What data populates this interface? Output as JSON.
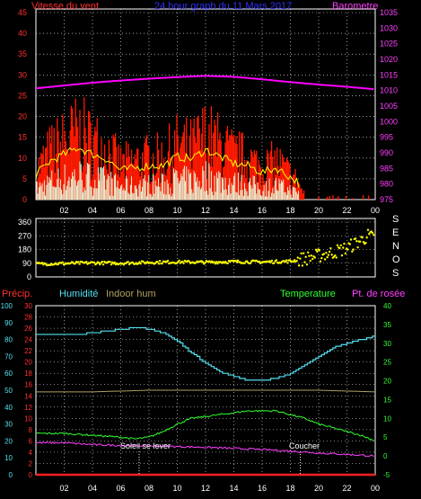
{
  "header": {
    "wind_label": "Vitesse du vent",
    "title": "24 hour graph du 11 Mars 2017",
    "baro_label": "Barometre"
  },
  "colors": {
    "wind": "#ff1a00",
    "gust_light": "#e8ffe0",
    "yellow": "#ffff00",
    "baro": "#ff00ff",
    "humidity": "#55e0f0",
    "indoor": "#b0a060",
    "temp": "#30ff30",
    "dew": "#ff40ff",
    "rain": "#ff2020",
    "axis_left": "#ff3030",
    "axis_right_magenta": "#ff40ff",
    "axis_right_green": "#30ff30",
    "axis_left_cyan": "#55e0f0",
    "grid": "#ffffff"
  },
  "x_ticks": [
    "02",
    "04",
    "06",
    "08",
    "10",
    "12",
    "14",
    "16",
    "18",
    "20",
    "22",
    "00"
  ],
  "panel_wind": {
    "y_left_ticks": [
      "0",
      "5",
      "10",
      "15",
      "20",
      "25",
      "30",
      "35",
      "40",
      "45"
    ],
    "y_right_ticks": [
      "975",
      "980",
      "985",
      "990",
      "995",
      "1000",
      "1005",
      "1010",
      "1015",
      "1020",
      "1025",
      "1030",
      "1035"
    ]
  },
  "panel_dir": {
    "y_ticks": [
      "0",
      "90",
      "180",
      "270",
      "360"
    ],
    "cardinals": [
      "S",
      "E",
      "N",
      "O",
      "S"
    ]
  },
  "panel_temp": {
    "labels": {
      "precip": "Précip.",
      "humidity": "Humidité",
      "indoor": "Indoor hum",
      "temperature": "Temperature",
      "dew": "Pt. de rosée"
    },
    "y_precip_ticks": [
      "0",
      "10",
      "20",
      "30",
      "40",
      "50",
      "60",
      "70",
      "80",
      "90",
      "100"
    ],
    "y_hum_ticks": [
      "0",
      "2",
      "4",
      "6",
      "8",
      "10",
      "12",
      "14",
      "16",
      "18",
      "20",
      "22",
      "24",
      "26",
      "28",
      "30"
    ],
    "y_temp_ticks": [
      "-5",
      "0",
      "5",
      "10",
      "15",
      "20",
      "25",
      "30",
      "35",
      "40"
    ],
    "sunrise": "Soleil se lever",
    "sunset": "Coucher"
  },
  "chart_data": [
    {
      "type": "line",
      "title": "24 hour graph du 11 Mars 2017",
      "x_unit": "hour",
      "x_range": [
        0,
        24
      ],
      "series": [
        {
          "name": "Barometre",
          "axis": "right",
          "x": [
            0,
            2,
            4,
            6,
            8,
            10,
            12,
            14,
            16,
            18,
            20,
            22,
            24
          ],
          "values": [
            1010.7,
            1011.6,
            1012.5,
            1013.2,
            1013.8,
            1014.3,
            1014.7,
            1014.4,
            1013.6,
            1012.7,
            1011.9,
            1011.2,
            1010.4
          ]
        },
        {
          "name": "Vitesse du vent",
          "axis": "left",
          "style": "bar",
          "x": [
            0,
            1,
            2,
            3,
            4,
            5,
            6,
            7,
            8,
            9,
            10,
            11,
            12,
            13,
            14,
            15,
            16,
            17,
            18,
            18.5,
            19,
            20,
            21,
            22,
            23
          ],
          "values": [
            9,
            15,
            18,
            21,
            18,
            16,
            11,
            12,
            13,
            13,
            17,
            16,
            20,
            17,
            14,
            13,
            10,
            12,
            8,
            6,
            2,
            1,
            1,
            1,
            1
          ]
        }
      ],
      "ylim_left": [
        0,
        45
      ],
      "ylim_right": [
        975,
        1035
      ]
    },
    {
      "type": "scatter",
      "x_unit": "hour",
      "x_range": [
        0,
        24
      ],
      "series": [
        {
          "name": "Direction",
          "x": [
            0,
            2,
            4,
            6,
            8,
            10,
            12,
            14,
            16,
            18,
            19,
            20,
            21,
            22,
            23,
            23.5,
            24
          ],
          "values": [
            85,
            88,
            92,
            90,
            95,
            98,
            96,
            100,
            98,
            102,
            120,
            140,
            160,
            190,
            240,
            270,
            250
          ]
        }
      ],
      "ylim": [
        0,
        360
      ]
    },
    {
      "type": "line",
      "x_unit": "hour",
      "x_range": [
        0,
        24
      ],
      "series": [
        {
          "name": "Humidité",
          "axis": "left",
          "x": [
            0,
            1,
            2,
            3,
            4,
            5,
            6,
            7,
            7.5,
            8,
            9,
            10,
            11,
            12,
            13,
            14,
            15,
            16,
            17,
            18,
            19,
            20,
            21,
            22,
            23,
            24
          ],
          "values": [
            83,
            83,
            83,
            83,
            84,
            85,
            86,
            87,
            87,
            86,
            84,
            79,
            72,
            66,
            61,
            58,
            56,
            56,
            57,
            60,
            65,
            70,
            75,
            78,
            80,
            82
          ]
        },
        {
          "name": "Indoor hum",
          "axis": "left",
          "x": [
            0,
            4,
            8,
            12,
            16,
            20,
            24
          ],
          "values": [
            49,
            49,
            50,
            50,
            50,
            50,
            49
          ]
        },
        {
          "name": "Temperature",
          "axis": "right",
          "x": [
            0,
            2,
            4,
            6,
            7,
            8,
            9,
            10,
            11,
            12,
            13,
            14,
            15,
            16,
            17,
            18,
            19,
            20,
            21,
            22,
            23,
            24
          ],
          "values": [
            6,
            6,
            5.5,
            5,
            4.5,
            5,
            6.5,
            8.5,
            10,
            10.5,
            11,
            11.5,
            12,
            12,
            12,
            11,
            10,
            8.5,
            7.5,
            6.5,
            5.5,
            4
          ]
        },
        {
          "name": "Pt. de rosée",
          "axis": "right",
          "x": [
            0,
            2,
            4,
            6,
            8,
            10,
            12,
            14,
            16,
            18,
            20,
            22,
            24
          ],
          "values": [
            3.5,
            3.5,
            3,
            2.8,
            2.7,
            2.5,
            2.3,
            2,
            1.7,
            1.3,
            0.8,
            0.4,
            0
          ]
        },
        {
          "name": "Précip.",
          "axis": "left",
          "x": [
            0,
            24
          ],
          "values": [
            0,
            0
          ]
        }
      ],
      "ylim_precip": [
        0,
        100
      ],
      "ylim_hum": [
        0,
        30
      ],
      "ylim_temp": [
        -5,
        40
      ],
      "annotations": [
        {
          "label": "Soleil se lever",
          "x": 7.3
        },
        {
          "label": "Coucher",
          "x": 18.7
        }
      ]
    }
  ]
}
